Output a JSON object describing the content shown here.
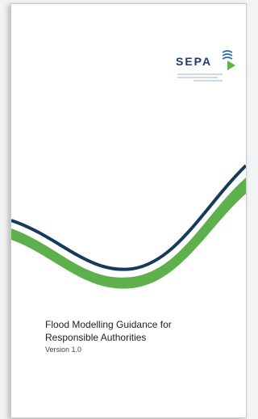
{
  "logo": {
    "text": "SEPA"
  },
  "title": {
    "lines": [
      "Flood Modelling Guidance for",
      "Responsible Authorities"
    ]
  },
  "version": "Version 1.0"
}
